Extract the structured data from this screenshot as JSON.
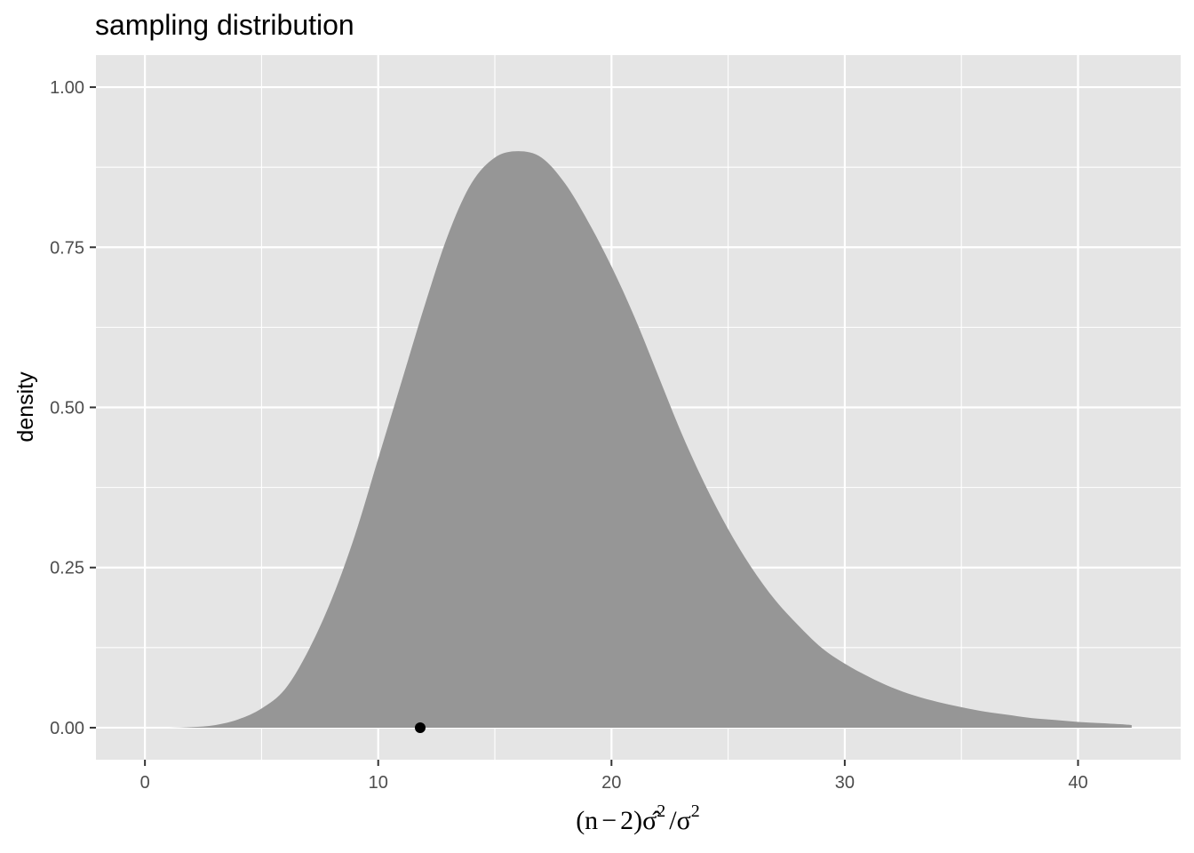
{
  "chart_data": {
    "type": "area",
    "title": "sampling distribution",
    "ylabel": "density",
    "xlabel": {
      "prefix": "(n",
      "minus": "−",
      "mid": "2)",
      "sigma_hat": "σ̂",
      "exp1": "2",
      "slash": "/",
      "sigma": "σ",
      "exp2": "2"
    },
    "xlim": [
      -2.1,
      44.4
    ],
    "ylim": [
      -0.05,
      1.05
    ],
    "x_ticks": [
      0,
      10,
      20,
      30,
      40
    ],
    "x_tick_labels": [
      "0",
      "10",
      "20",
      "30",
      "40"
    ],
    "x_minor": [
      5,
      15,
      25,
      35
    ],
    "y_ticks": [
      0,
      0.25,
      0.5,
      0.75,
      1.0
    ],
    "y_tick_labels": [
      "0.00",
      "0.25",
      "0.50",
      "0.75",
      "1.00"
    ],
    "y_minor": [
      0.125,
      0.375,
      0.625,
      0.875
    ],
    "density_curve": {
      "x": [
        0,
        1,
        2,
        3,
        4,
        5,
        6,
        7,
        8,
        9,
        10,
        11,
        12,
        13,
        14,
        15,
        16,
        17,
        18,
        19,
        20,
        21,
        22,
        23,
        24,
        25,
        26,
        27,
        28,
        29,
        30,
        31,
        32,
        33,
        34,
        35,
        36,
        37,
        38,
        39,
        40,
        41,
        42,
        42.3
      ],
      "y": [
        0,
        0,
        0.001,
        0.004,
        0.013,
        0.03,
        0.06,
        0.12,
        0.2,
        0.3,
        0.42,
        0.54,
        0.66,
        0.77,
        0.85,
        0.89,
        0.9,
        0.89,
        0.85,
        0.79,
        0.72,
        0.64,
        0.55,
        0.46,
        0.38,
        0.31,
        0.25,
        0.2,
        0.16,
        0.125,
        0.1,
        0.08,
        0.063,
        0.05,
        0.04,
        0.032,
        0.025,
        0.02,
        0.015,
        0.012,
        0.009,
        0.007,
        0.005,
        0.004
      ],
      "fill": "#969696"
    },
    "observed_point": {
      "x": 11.8,
      "y": 0.0,
      "color": "#000000"
    },
    "panel_bg": "#e5e5e5",
    "grid_color": "#ffffff",
    "grid": true
  }
}
